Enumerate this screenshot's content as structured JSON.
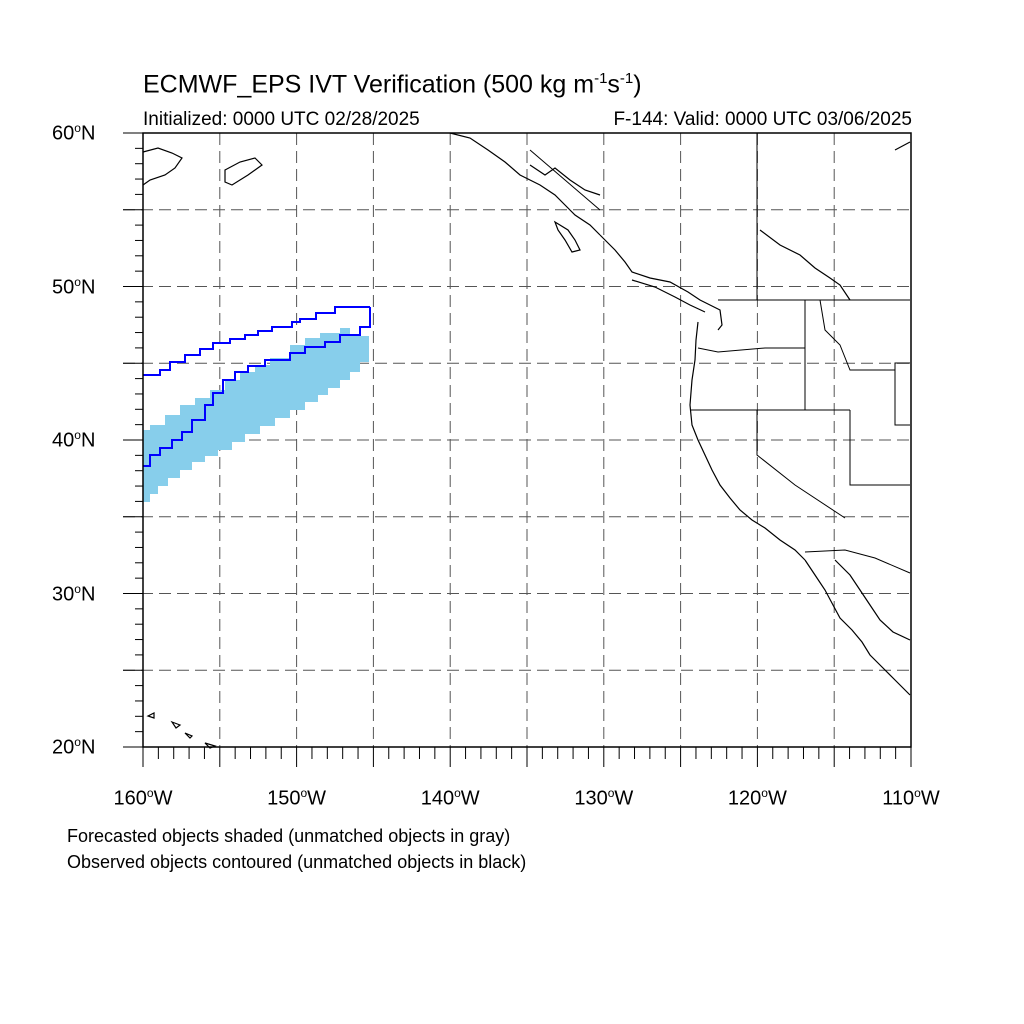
{
  "header": {
    "title_main": "ECMWF_EPS IVT Verification (500 kg m",
    "title_exp1": "-1",
    "title_mid": "s",
    "title_exp2": "-1",
    "title_end": ")",
    "initialized": "Initialized: 0000 UTC 02/28/2025",
    "valid": "F-144: Valid: 0000 UTC 03/06/2025"
  },
  "axes": {
    "lat_ticks": [
      {
        "value": 60,
        "text": "60",
        "suffix": "N"
      },
      {
        "value": 50,
        "text": "50",
        "suffix": "N"
      },
      {
        "value": 40,
        "text": "40",
        "suffix": "N"
      },
      {
        "value": 30,
        "text": "30",
        "suffix": "N"
      },
      {
        "value": 20,
        "text": "20",
        "suffix": "N"
      }
    ],
    "lon_ticks": [
      {
        "value": -160,
        "text": "160",
        "suffix": "W"
      },
      {
        "value": -150,
        "text": "150",
        "suffix": "W"
      },
      {
        "value": -140,
        "text": "140",
        "suffix": "W"
      },
      {
        "value": -130,
        "text": "130",
        "suffix": "W"
      },
      {
        "value": -120,
        "text": "120",
        "suffix": "W"
      },
      {
        "value": -110,
        "text": "110",
        "suffix": "W"
      }
    ],
    "lon_range": [
      -160,
      -110
    ],
    "lat_range": [
      20,
      60
    ],
    "grid_spacing_deg": 5
  },
  "legend": {
    "line1": "Forecasted objects shaded (unmatched objects in gray)",
    "line2": "Observed objects contoured (unmatched objects in black)"
  },
  "colors": {
    "forecast_fill": "#87ceeb",
    "observed_contour": "#0000ff",
    "coastline": "#000000",
    "grid": "#555555"
  }
}
